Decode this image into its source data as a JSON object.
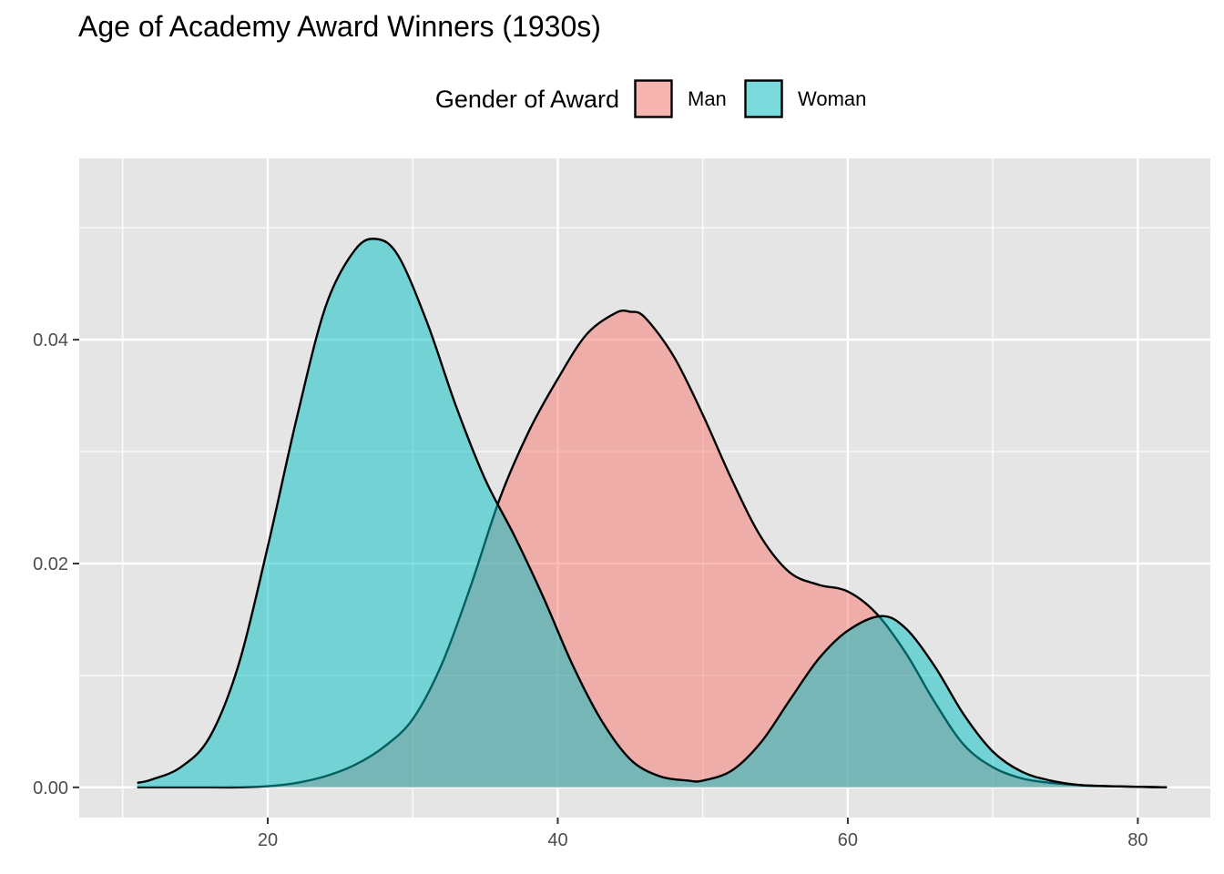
{
  "chart_data": {
    "type": "area",
    "subtype": "density",
    "title": "Age of Academy Award Winners (1930s)",
    "xlabel": "",
    "ylabel": "",
    "xlim": [
      7,
      85
    ],
    "ylim": [
      -0.0027,
      0.0562
    ],
    "x_ticks": [
      20,
      40,
      60,
      80
    ],
    "x_tick_labels": [
      "20",
      "40",
      "60",
      "80"
    ],
    "y_ticks": [
      0.0,
      0.02,
      0.04
    ],
    "y_tick_labels": [
      "0.00",
      "0.02",
      "0.04"
    ],
    "grid": true,
    "legend": {
      "title": "Gender of Award",
      "position": "top"
    },
    "series": [
      {
        "name": "Man",
        "color": "#F8766D",
        "x": [
          11,
          15,
          18,
          20,
          22,
          24,
          26,
          28,
          30,
          32,
          34,
          36,
          38,
          40,
          42,
          44,
          45,
          46,
          48,
          50,
          52,
          54,
          56,
          58,
          60,
          62,
          64,
          66,
          68,
          70,
          72,
          74,
          76,
          78,
          82
        ],
        "y": [
          0.0,
          0.0,
          0.0,
          0.0001,
          0.0004,
          0.001,
          0.002,
          0.0036,
          0.0061,
          0.011,
          0.018,
          0.0258,
          0.0318,
          0.0365,
          0.0405,
          0.0424,
          0.0425,
          0.042,
          0.0385,
          0.0333,
          0.0275,
          0.0224,
          0.0192,
          0.0181,
          0.0175,
          0.0155,
          0.012,
          0.0076,
          0.0038,
          0.0018,
          0.0008,
          0.0004,
          0.0002,
          0.0001,
          0.0
        ]
      },
      {
        "name": "Woman",
        "color": "#00BFC4",
        "x": [
          11,
          12,
          14,
          16,
          18,
          20,
          22,
          24,
          26,
          27.5,
          29,
          31,
          33,
          35,
          37,
          39,
          41,
          43,
          45,
          47,
          49,
          50,
          52,
          54,
          56,
          58,
          60,
          62.3,
          64,
          66,
          68,
          70,
          72,
          74,
          76,
          78,
          82
        ],
        "y": [
          0.0004,
          0.0007,
          0.0018,
          0.0045,
          0.011,
          0.0215,
          0.033,
          0.043,
          0.048,
          0.049,
          0.0475,
          0.0415,
          0.034,
          0.0275,
          0.0225,
          0.017,
          0.011,
          0.006,
          0.0025,
          0.001,
          0.0006,
          0.0006,
          0.0015,
          0.004,
          0.0078,
          0.0115,
          0.014,
          0.0153,
          0.0142,
          0.0108,
          0.0065,
          0.0032,
          0.0014,
          0.0006,
          0.0002,
          0.0001,
          0.0
        ]
      }
    ]
  }
}
